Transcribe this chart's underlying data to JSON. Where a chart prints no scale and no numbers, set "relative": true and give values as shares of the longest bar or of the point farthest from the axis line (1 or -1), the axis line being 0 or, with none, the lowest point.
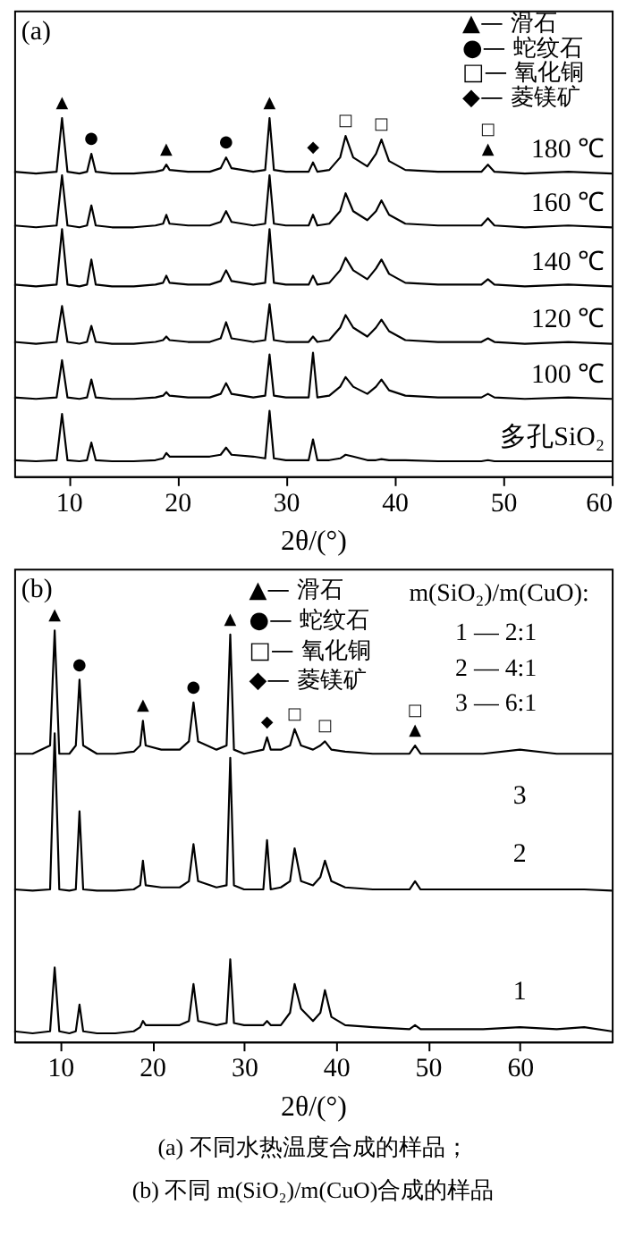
{
  "chart_data": [
    {
      "type": "line",
      "title": "(a)",
      "xlabel": "2θ/(°)",
      "relative": true,
      "xlim": [
        5,
        60
      ],
      "xticks": [
        10,
        20,
        30,
        40,
        50,
        60
      ],
      "x": [
        5,
        7,
        8.9,
        9.4,
        9.9,
        11,
        11.7,
        12.1,
        12.5,
        14,
        16,
        18,
        18.7,
        19,
        19.3,
        21,
        23,
        24,
        24.5,
        25,
        27,
        28.1,
        28.5,
        28.9,
        30,
        32.1,
        32.5,
        32.9,
        34,
        35,
        35.5,
        36.2,
        37.5,
        38.3,
        38.8,
        39.5,
        41,
        44,
        48,
        48.6,
        49.2,
        52,
        56,
        60
      ],
      "series": [
        {
          "name": "180 ℃",
          "color": "#000000",
          "values": [
            0.85,
            0.845,
            0.85,
            1.0,
            0.85,
            0.845,
            0.85,
            0.9,
            0.85,
            0.845,
            0.845,
            0.85,
            0.855,
            0.87,
            0.855,
            0.85,
            0.85,
            0.86,
            0.89,
            0.86,
            0.85,
            0.855,
            1.0,
            0.855,
            0.85,
            0.85,
            0.876,
            0.85,
            0.855,
            0.89,
            0.95,
            0.89,
            0.865,
            0.9,
            0.94,
            0.88,
            0.855,
            0.85,
            0.85,
            0.87,
            0.85,
            0.845,
            0.85,
            0.845
          ]
        },
        {
          "name": "160 ℃",
          "color": "#000000",
          "values": [
            0.7,
            0.695,
            0.7,
            0.84,
            0.7,
            0.695,
            0.7,
            0.756,
            0.7,
            0.695,
            0.695,
            0.7,
            0.705,
            0.73,
            0.705,
            0.7,
            0.7,
            0.71,
            0.74,
            0.71,
            0.7,
            0.705,
            0.84,
            0.705,
            0.7,
            0.7,
            0.73,
            0.7,
            0.705,
            0.74,
            0.79,
            0.74,
            0.715,
            0.74,
            0.77,
            0.73,
            0.705,
            0.7,
            0.7,
            0.72,
            0.7,
            0.695,
            0.7,
            0.695
          ]
        },
        {
          "name": "140 ℃",
          "color": "#000000",
          "values": [
            0.535,
            0.53,
            0.535,
            0.69,
            0.535,
            0.53,
            0.535,
            0.605,
            0.535,
            0.53,
            0.53,
            0.535,
            0.54,
            0.56,
            0.54,
            0.535,
            0.535,
            0.545,
            0.575,
            0.545,
            0.535,
            0.54,
            0.69,
            0.54,
            0.535,
            0.535,
            0.56,
            0.535,
            0.54,
            0.575,
            0.61,
            0.575,
            0.55,
            0.58,
            0.605,
            0.565,
            0.54,
            0.535,
            0.535,
            0.55,
            0.535,
            0.53,
            0.535,
            0.53
          ]
        },
        {
          "name": "120 ℃",
          "color": "#000000",
          "values": [
            0.375,
            0.37,
            0.375,
            0.475,
            0.375,
            0.37,
            0.375,
            0.42,
            0.375,
            0.37,
            0.37,
            0.375,
            0.38,
            0.39,
            0.38,
            0.375,
            0.375,
            0.385,
            0.43,
            0.385,
            0.375,
            0.38,
            0.48,
            0.38,
            0.375,
            0.375,
            0.39,
            0.375,
            0.38,
            0.415,
            0.45,
            0.415,
            0.39,
            0.415,
            0.437,
            0.405,
            0.38,
            0.375,
            0.375,
            0.385,
            0.375,
            0.37,
            0.375,
            0.37
          ]
        },
        {
          "name": "100 ℃",
          "color": "#000000",
          "values": [
            0.22,
            0.216,
            0.22,
            0.324,
            0.22,
            0.216,
            0.22,
            0.27,
            0.22,
            0.216,
            0.216,
            0.22,
            0.225,
            0.235,
            0.225,
            0.22,
            0.22,
            0.23,
            0.26,
            0.23,
            0.22,
            0.225,
            0.34,
            0.225,
            0.22,
            0.22,
            0.345,
            0.22,
            0.225,
            0.25,
            0.277,
            0.25,
            0.23,
            0.25,
            0.27,
            0.24,
            0.225,
            0.22,
            0.22,
            0.23,
            0.22,
            0.216,
            0.22,
            0.216
          ]
        },
        {
          "name": "多孔SiO₂",
          "color": "#000000",
          "values": [
            0.045,
            0.042,
            0.045,
            0.174,
            0.045,
            0.042,
            0.045,
            0.094,
            0.045,
            0.042,
            0.042,
            0.045,
            0.05,
            0.065,
            0.055,
            0.055,
            0.055,
            0.06,
            0.08,
            0.06,
            0.055,
            0.05,
            0.183,
            0.05,
            0.045,
            0.045,
            0.103,
            0.045,
            0.045,
            0.05,
            0.06,
            0.055,
            0.045,
            0.045,
            0.048,
            0.045,
            0.045,
            0.042,
            0.042,
            0.045,
            0.042,
            0.042,
            0.042,
            0.042
          ]
        }
      ],
      "annotations": [
        "▲— 滑石",
        "●— 蛇纹石",
        "□— 氧化铜",
        "◆— 菱镁矿",
        {
          "text": "▲",
          "x": 9.4,
          "y": 1.0
        },
        {
          "text": "●",
          "x": 12.1,
          "y": 0.9
        },
        {
          "text": "▲",
          "x": 19,
          "y": 0.87
        },
        {
          "text": "●",
          "x": 24.5,
          "y": 0.89
        },
        {
          "text": "▲",
          "x": 28.5,
          "y": 1.0
        },
        {
          "text": "◆",
          "x": 32.5,
          "y": 0.876
        },
        {
          "text": "□",
          "x": 35.5,
          "y": 0.95
        },
        {
          "text": "□",
          "x": 38.8,
          "y": 0.94
        },
        {
          "text": "▲",
          "x": 48.6,
          "y": 0.87
        },
        {
          "text": "□",
          "x": 48.6,
          "y": 0.87
        }
      ]
    },
    {
      "type": "line",
      "title": "(b)",
      "xlabel": "2θ/(°)",
      "relative": true,
      "xlim": [
        5,
        70
      ],
      "xticks": [
        10,
        20,
        30,
        40,
        50,
        60
      ],
      "x": [
        5,
        7,
        8.9,
        9.4,
        9.9,
        11,
        11.7,
        12.1,
        12.5,
        14,
        16,
        18,
        18.7,
        19,
        19.3,
        21,
        23,
        24,
        24.5,
        25,
        27,
        28.1,
        28.5,
        28.9,
        30,
        32.1,
        32.5,
        32.9,
        34,
        35,
        35.5,
        36.2,
        37.5,
        38.3,
        38.8,
        39.5,
        41,
        44,
        48,
        48.6,
        49.2,
        52,
        56,
        60,
        64,
        67,
        70
      ],
      "series": [
        {
          "name": "3",
          "color": "#000000",
          "values": [
            0.7,
            0.7,
            0.72,
            1.0,
            0.7,
            0.7,
            0.72,
            0.88,
            0.72,
            0.7,
            0.7,
            0.705,
            0.72,
            0.78,
            0.72,
            0.71,
            0.71,
            0.73,
            0.825,
            0.73,
            0.71,
            0.72,
            0.99,
            0.71,
            0.7,
            0.71,
            0.74,
            0.71,
            0.71,
            0.72,
            0.76,
            0.72,
            0.71,
            0.72,
            0.73,
            0.71,
            0.705,
            0.7,
            0.7,
            0.72,
            0.7,
            0.7,
            0.7,
            0.71,
            0.7,
            0.7,
            0.7
          ]
        },
        {
          "name": "2",
          "color": "#000000",
          "values": [
            0.37,
            0.367,
            0.37,
            0.75,
            0.37,
            0.367,
            0.37,
            0.56,
            0.37,
            0.367,
            0.367,
            0.37,
            0.38,
            0.44,
            0.38,
            0.375,
            0.375,
            0.39,
            0.48,
            0.39,
            0.375,
            0.38,
            0.69,
            0.38,
            0.37,
            0.37,
            0.49,
            0.37,
            0.375,
            0.39,
            0.47,
            0.39,
            0.38,
            0.4,
            0.44,
            0.39,
            0.375,
            0.37,
            0.37,
            0.39,
            0.37,
            0.37,
            0.37,
            0.37,
            0.37,
            0.37,
            0.367
          ]
        },
        {
          "name": "1",
          "color": "#000000",
          "values": [
            0.025,
            0.02,
            0.025,
            0.18,
            0.025,
            0.02,
            0.025,
            0.09,
            0.025,
            0.02,
            0.02,
            0.025,
            0.035,
            0.05,
            0.04,
            0.04,
            0.04,
            0.05,
            0.14,
            0.05,
            0.04,
            0.045,
            0.2,
            0.045,
            0.04,
            0.04,
            0.05,
            0.04,
            0.04,
            0.07,
            0.14,
            0.08,
            0.05,
            0.07,
            0.125,
            0.06,
            0.04,
            0.035,
            0.03,
            0.04,
            0.03,
            0.03,
            0.03,
            0.035,
            0.03,
            0.035,
            0.025
          ]
        }
      ],
      "annotations": [
        "▲— 滑石",
        "●— 蛇纹石",
        "□— 氧化铜",
        "◆— 菱镁矿",
        "m(SiO₂)/m(CuO):",
        "1 — 2:1",
        "2 — 4:1",
        "3 — 6:1",
        "(a) 不同水热温度合成的样品；",
        "(b) 不同 m(SiO₂)/m(CuO)合成的样品",
        {
          "text": "▲",
          "x": 9.4,
          "y": 1.0
        },
        {
          "text": "●",
          "x": 12.1,
          "y": 0.88
        },
        {
          "text": "▲",
          "x": 19,
          "y": 0.78
        },
        {
          "text": "●",
          "x": 24.5,
          "y": 0.825
        },
        {
          "text": "▲",
          "x": 28.5,
          "y": 0.99
        },
        {
          "text": "◆",
          "x": 32.5,
          "y": 0.74
        },
        {
          "text": "□",
          "x": 35.5,
          "y": 0.76
        },
        {
          "text": "□",
          "x": 38.8,
          "y": 0.73
        },
        {
          "text": "▲",
          "x": 48.6,
          "y": 0.72
        },
        {
          "text": "□",
          "x": 48.6,
          "y": 0.72
        }
      ]
    }
  ]
}
